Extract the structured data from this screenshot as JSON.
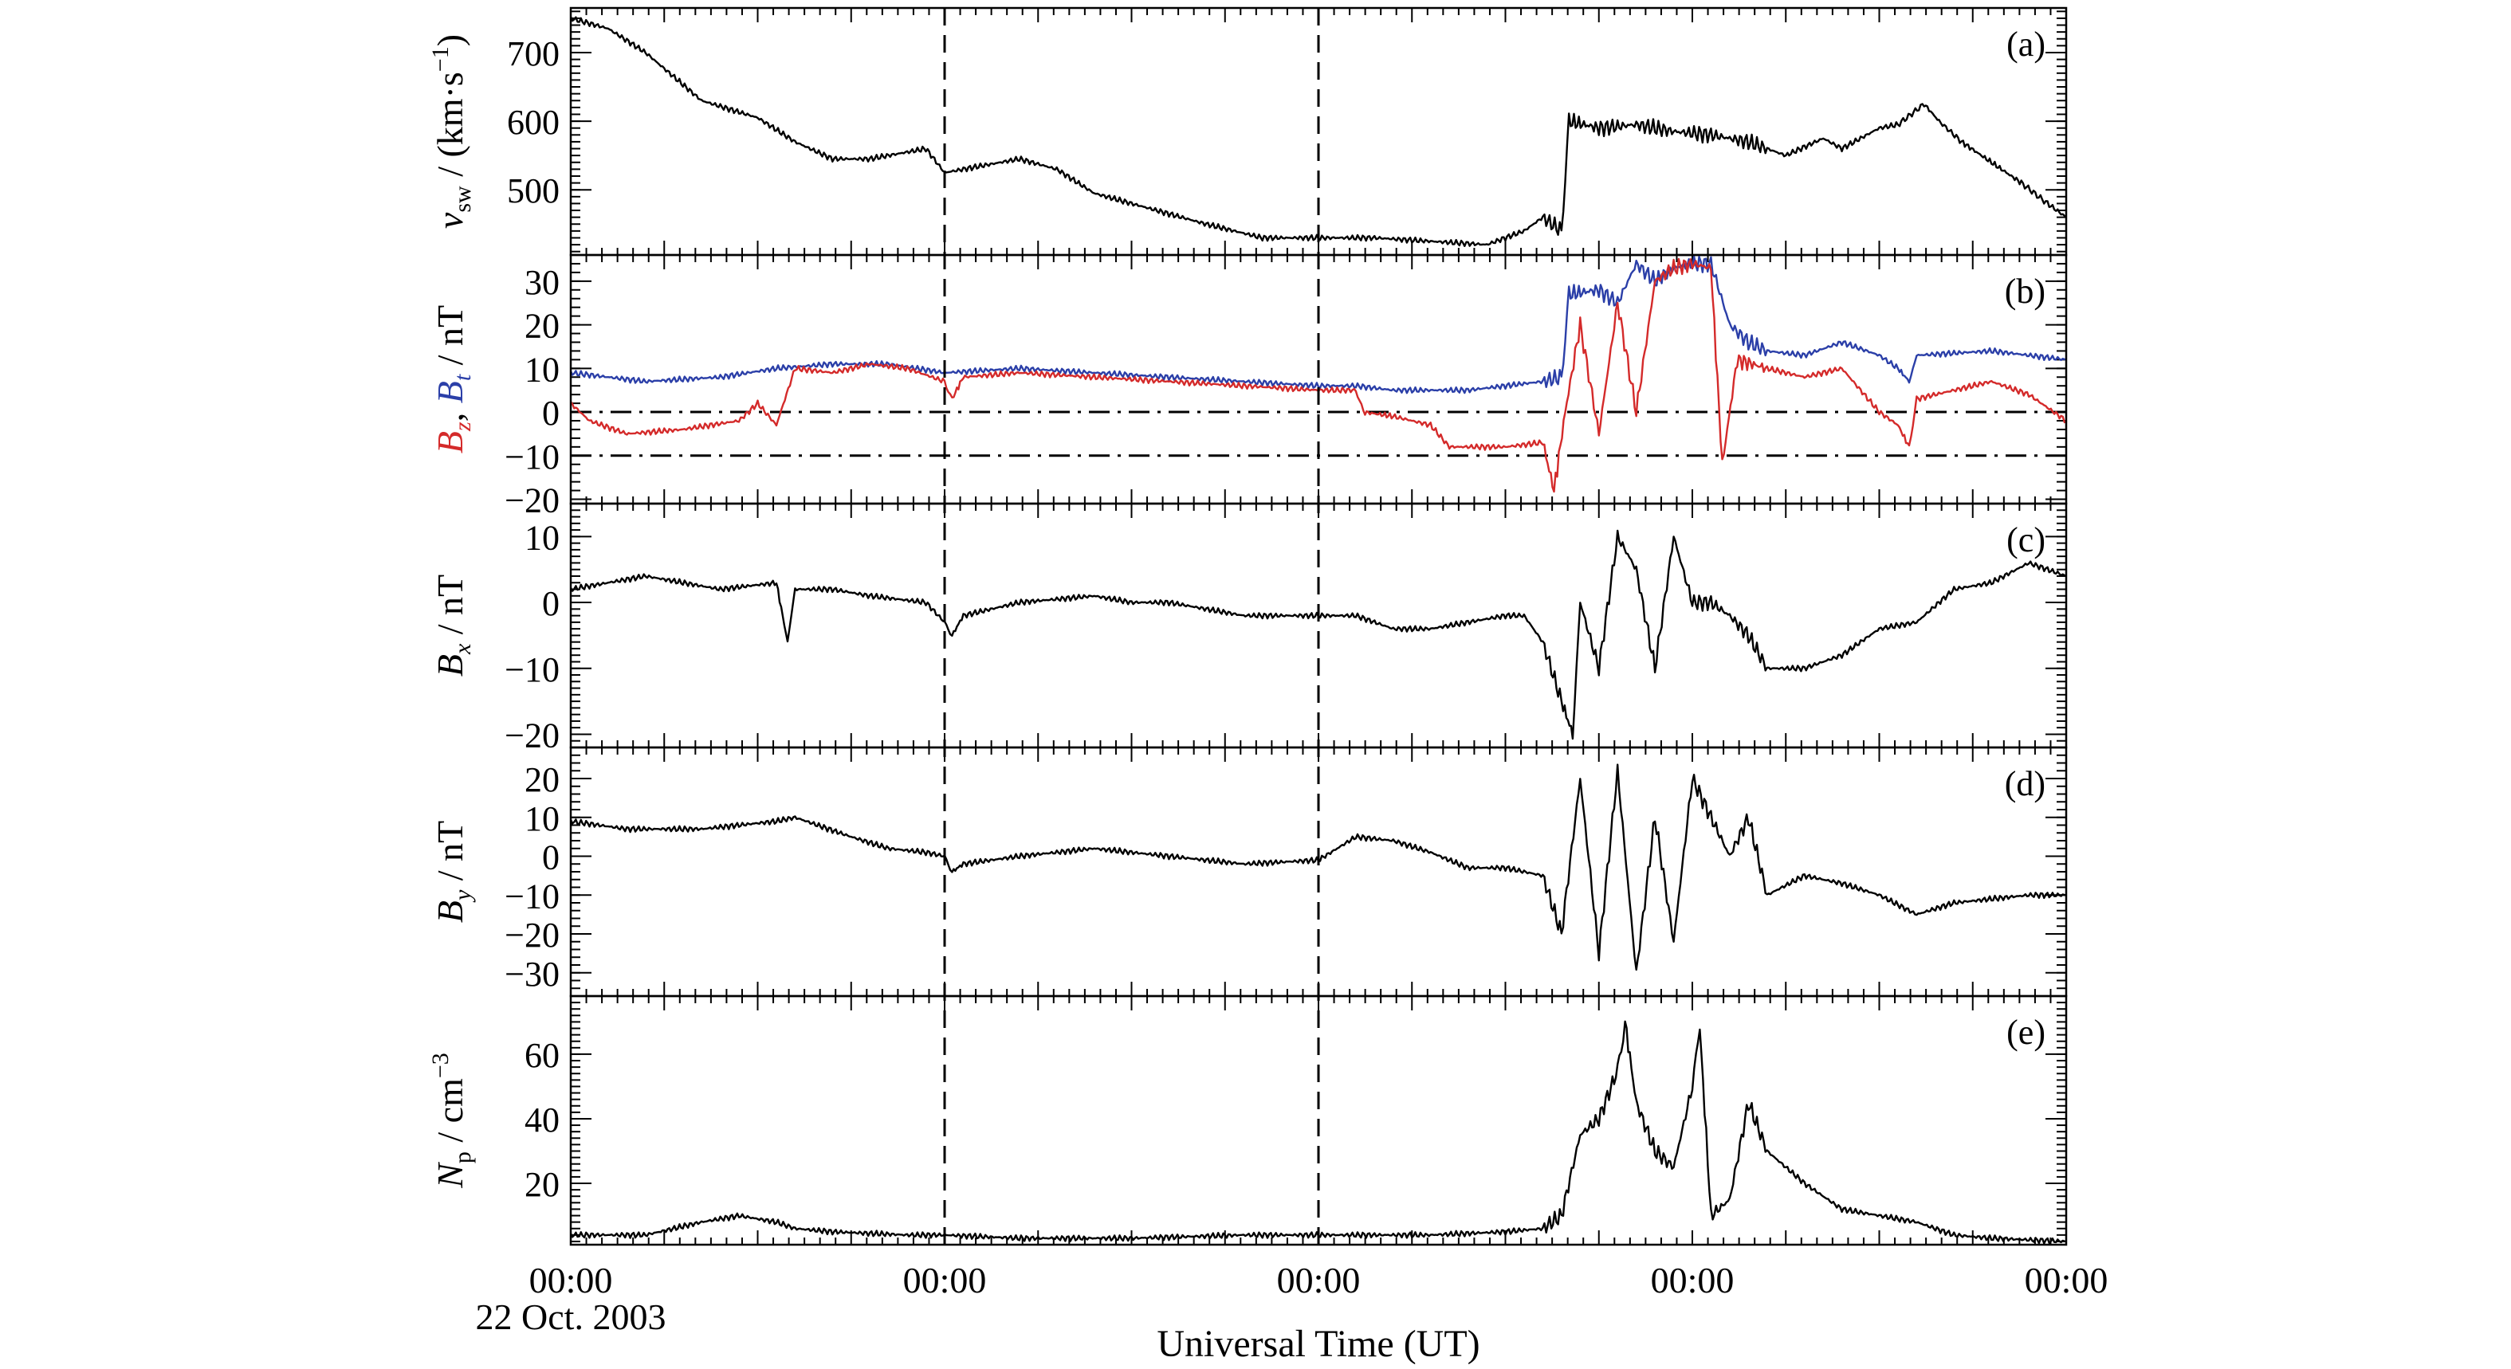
{
  "figure": {
    "x_axis": {
      "tick_labels": [
        "00:00",
        "00:00",
        "00:00",
        "00:00",
        "00:00"
      ],
      "date_label": "22 Oct. 2003",
      "label": "Universal Time (UT)",
      "range_days": [
        0,
        4
      ],
      "tick_positions_days": [
        0,
        1,
        2,
        3,
        4
      ],
      "dashed_vertical_lines_days": [
        1.0,
        2.0
      ]
    }
  },
  "chart_data": [
    {
      "id": "a",
      "type": "line",
      "panel_label": "(a)",
      "ylabel_parts": [
        "v",
        "sw",
        " / (km·s",
        "−1",
        ")"
      ],
      "ylim": [
        405,
        765
      ],
      "yticks": [
        500,
        600,
        700
      ],
      "series": [
        {
          "color": "#000000",
          "points": [
            [
              0,
              750
            ],
            [
              0.1,
              735
            ],
            [
              0.2,
              700
            ],
            [
              0.35,
              630
            ],
            [
              0.5,
              605
            ],
            [
              0.6,
              570
            ],
            [
              0.7,
              545
            ],
            [
              0.8,
              545
            ],
            [
              0.95,
              560
            ],
            [
              1.0,
              525
            ],
            [
              1.1,
              535
            ],
            [
              1.2,
              545
            ],
            [
              1.3,
              530
            ],
            [
              1.4,
              495
            ],
            [
              1.5,
              480
            ],
            [
              1.6,
              465
            ],
            [
              1.7,
              450
            ],
            [
              1.85,
              430
            ],
            [
              2.0,
              430
            ],
            [
              2.15,
              430
            ],
            [
              2.3,
              425
            ],
            [
              2.45,
              420
            ],
            [
              2.55,
              440
            ],
            [
              2.6,
              460
            ],
            [
              2.65,
              440
            ],
            [
              2.67,
              600
            ],
            [
              2.75,
              590
            ],
            [
              2.85,
              595
            ],
            [
              2.95,
              585
            ],
            [
              3.05,
              580
            ],
            [
              3.15,
              570
            ],
            [
              3.25,
              550
            ],
            [
              3.35,
              575
            ],
            [
              3.4,
              560
            ],
            [
              3.45,
              575
            ],
            [
              3.5,
              590
            ],
            [
              3.55,
              595
            ],
            [
              3.62,
              625
            ],
            [
              3.66,
              600
            ],
            [
              3.72,
              570
            ],
            [
              3.8,
              540
            ],
            [
              3.88,
              510
            ],
            [
              3.95,
              480
            ],
            [
              4.0,
              460
            ]
          ]
        }
      ]
    },
    {
      "id": "b",
      "type": "line",
      "panel_label": "(b)",
      "ylabel_parts": [
        "B",
        "z",
        ", ",
        "B",
        "t",
        " / nT"
      ],
      "ylim": [
        -21,
        36
      ],
      "yticks": [
        -20,
        -10,
        0,
        10,
        20,
        30
      ],
      "horizontal_reference_lines": [
        0,
        -10
      ],
      "series": [
        {
          "name": "B_t",
          "color": "#2b3fa8",
          "points": [
            [
              0,
              9
            ],
            [
              0.2,
              7
            ],
            [
              0.4,
              8
            ],
            [
              0.55,
              10
            ],
            [
              0.7,
              11
            ],
            [
              0.85,
              11
            ],
            [
              1.0,
              9
            ],
            [
              1.2,
              10
            ],
            [
              1.4,
              9
            ],
            [
              1.6,
              8
            ],
            [
              1.8,
              7
            ],
            [
              2.0,
              6
            ],
            [
              2.1,
              6
            ],
            [
              2.2,
              5
            ],
            [
              2.4,
              5
            ],
            [
              2.5,
              6
            ],
            [
              2.6,
              7
            ],
            [
              2.65,
              8
            ],
            [
              2.67,
              27
            ],
            [
              2.75,
              28
            ],
            [
              2.8,
              25
            ],
            [
              2.85,
              34
            ],
            [
              2.9,
              30
            ],
            [
              2.95,
              33
            ],
            [
              3.0,
              34
            ],
            [
              3.05,
              34
            ],
            [
              3.1,
              20
            ],
            [
              3.15,
              16
            ],
            [
              3.2,
              14
            ],
            [
              3.3,
              13
            ],
            [
              3.4,
              16
            ],
            [
              3.5,
              13
            ],
            [
              3.55,
              10
            ],
            [
              3.58,
              7
            ],
            [
              3.6,
              13
            ],
            [
              3.8,
              14
            ],
            [
              4.0,
              12
            ]
          ]
        },
        {
          "name": "B_z",
          "color": "#d42a2a",
          "points": [
            [
              0,
              2
            ],
            [
              0.05,
              -2
            ],
            [
              0.15,
              -5
            ],
            [
              0.3,
              -4
            ],
            [
              0.45,
              -2
            ],
            [
              0.5,
              2
            ],
            [
              0.55,
              -3
            ],
            [
              0.6,
              10
            ],
            [
              0.7,
              9
            ],
            [
              0.8,
              11
            ],
            [
              0.9,
              10
            ],
            [
              1.0,
              7
            ],
            [
              1.02,
              3
            ],
            [
              1.05,
              8
            ],
            [
              1.2,
              9
            ],
            [
              1.4,
              8
            ],
            [
              1.6,
              7
            ],
            [
              1.8,
              6
            ],
            [
              2.0,
              5
            ],
            [
              2.1,
              5
            ],
            [
              2.12,
              0
            ],
            [
              2.2,
              -1
            ],
            [
              2.3,
              -3
            ],
            [
              2.35,
              -8
            ],
            [
              2.5,
              -8
            ],
            [
              2.6,
              -7
            ],
            [
              2.63,
              -18
            ],
            [
              2.66,
              0
            ],
            [
              2.7,
              20
            ],
            [
              2.75,
              -5
            ],
            [
              2.8,
              25
            ],
            [
              2.85,
              0
            ],
            [
              2.9,
              30
            ],
            [
              2.95,
              33
            ],
            [
              3.0,
              34
            ],
            [
              3.05,
              33
            ],
            [
              3.08,
              -12
            ],
            [
              3.12,
              12
            ],
            [
              3.2,
              10
            ],
            [
              3.3,
              8
            ],
            [
              3.4,
              10
            ],
            [
              3.45,
              5
            ],
            [
              3.5,
              0
            ],
            [
              3.55,
              -3
            ],
            [
              3.58,
              -8
            ],
            [
              3.6,
              3
            ],
            [
              3.7,
              5
            ],
            [
              3.8,
              7
            ],
            [
              3.9,
              4
            ],
            [
              4.0,
              -2
            ]
          ]
        }
      ]
    },
    {
      "id": "c",
      "type": "line",
      "panel_label": "(c)",
      "ylabel_parts": [
        "B",
        "x",
        " / nT"
      ],
      "ylim": [
        -22,
        15
      ],
      "yticks": [
        -20,
        -10,
        0,
        10
      ],
      "series": [
        {
          "color": "#000000",
          "points": [
            [
              0,
              2
            ],
            [
              0.1,
              3
            ],
            [
              0.2,
              4
            ],
            [
              0.4,
              2
            ],
            [
              0.55,
              3
            ],
            [
              0.58,
              -6
            ],
            [
              0.6,
              2
            ],
            [
              0.7,
              2
            ],
            [
              0.8,
              1
            ],
            [
              0.95,
              0
            ],
            [
              1.0,
              -3
            ],
            [
              1.02,
              -5
            ],
            [
              1.05,
              -2
            ],
            [
              1.2,
              0
            ],
            [
              1.4,
              1
            ],
            [
              1.5,
              0
            ],
            [
              1.6,
              0
            ],
            [
              1.8,
              -2
            ],
            [
              2.0,
              -2
            ],
            [
              2.1,
              -2
            ],
            [
              2.2,
              -4
            ],
            [
              2.3,
              -4
            ],
            [
              2.4,
              -3
            ],
            [
              2.5,
              -2
            ],
            [
              2.55,
              -2
            ],
            [
              2.6,
              -6
            ],
            [
              2.65,
              -15
            ],
            [
              2.68,
              -20
            ],
            [
              2.7,
              0
            ],
            [
              2.75,
              -10
            ],
            [
              2.8,
              10
            ],
            [
              2.85,
              5
            ],
            [
              2.9,
              -10
            ],
            [
              2.95,
              10
            ],
            [
              3.0,
              0
            ],
            [
              3.05,
              0
            ],
            [
              3.1,
              -2
            ],
            [
              3.15,
              -5
            ],
            [
              3.2,
              -10
            ],
            [
              3.3,
              -10
            ],
            [
              3.4,
              -8
            ],
            [
              3.5,
              -4
            ],
            [
              3.6,
              -3
            ],
            [
              3.7,
              2
            ],
            [
              3.8,
              3
            ],
            [
              3.9,
              6
            ],
            [
              4.0,
              4
            ]
          ]
        }
      ]
    },
    {
      "id": "d",
      "type": "line",
      "panel_label": "(d)",
      "ylabel_parts": [
        "B",
        "y",
        " / nT"
      ],
      "ylim": [
        -36,
        28
      ],
      "yticks": [
        -30,
        -20,
        -10,
        0,
        10,
        20
      ],
      "series": [
        {
          "color": "#000000",
          "points": [
            [
              0,
              9
            ],
            [
              0.15,
              7
            ],
            [
              0.35,
              7
            ],
            [
              0.55,
              9
            ],
            [
              0.6,
              10
            ],
            [
              0.75,
              5
            ],
            [
              0.85,
              2
            ],
            [
              0.95,
              1
            ],
            [
              1.0,
              0
            ],
            [
              1.02,
              -4
            ],
            [
              1.05,
              -2
            ],
            [
              1.2,
              0
            ],
            [
              1.4,
              2
            ],
            [
              1.6,
              0
            ],
            [
              1.8,
              -2
            ],
            [
              2.0,
              -1
            ],
            [
              2.1,
              5
            ],
            [
              2.2,
              4
            ],
            [
              2.3,
              1
            ],
            [
              2.4,
              -3
            ],
            [
              2.5,
              -3
            ],
            [
              2.6,
              -5
            ],
            [
              2.65,
              -20
            ],
            [
              2.7,
              20
            ],
            [
              2.75,
              -25
            ],
            [
              2.8,
              22
            ],
            [
              2.85,
              -30
            ],
            [
              2.9,
              10
            ],
            [
              2.95,
              -22
            ],
            [
              3.0,
              20
            ],
            [
              3.05,
              10
            ],
            [
              3.1,
              0
            ],
            [
              3.15,
              10
            ],
            [
              3.2,
              -10
            ],
            [
              3.3,
              -5
            ],
            [
              3.4,
              -7
            ],
            [
              3.5,
              -10
            ],
            [
              3.6,
              -15
            ],
            [
              3.7,
              -12
            ],
            [
              3.8,
              -11
            ],
            [
              3.9,
              -10
            ],
            [
              4.0,
              -10
            ]
          ]
        }
      ]
    },
    {
      "id": "e",
      "type": "line",
      "panel_label": "(e)",
      "ylabel_parts": [
        "N",
        "p",
        " / cm",
        "−3"
      ],
      "ylim": [
        1,
        78
      ],
      "yticks": [
        20,
        40,
        60
      ],
      "series": [
        {
          "color": "#000000",
          "points": [
            [
              0,
              4
            ],
            [
              0.2,
              4
            ],
            [
              0.35,
              8
            ],
            [
              0.45,
              10
            ],
            [
              0.55,
              8
            ],
            [
              0.6,
              6
            ],
            [
              0.7,
              5
            ],
            [
              0.9,
              4
            ],
            [
              1.0,
              4
            ],
            [
              1.2,
              3
            ],
            [
              1.5,
              3
            ],
            [
              1.8,
              4
            ],
            [
              2.0,
              4
            ],
            [
              2.3,
              4
            ],
            [
              2.5,
              5
            ],
            [
              2.6,
              6
            ],
            [
              2.65,
              10
            ],
            [
              2.7,
              35
            ],
            [
              2.75,
              40
            ],
            [
              2.8,
              55
            ],
            [
              2.82,
              70
            ],
            [
              2.85,
              45
            ],
            [
              2.9,
              30
            ],
            [
              2.95,
              25
            ],
            [
              3.0,
              50
            ],
            [
              3.02,
              68
            ],
            [
              3.05,
              10
            ],
            [
              3.1,
              15
            ],
            [
              3.15,
              45
            ],
            [
              3.2,
              30
            ],
            [
              3.3,
              20
            ],
            [
              3.4,
              12
            ],
            [
              3.5,
              10
            ],
            [
              3.6,
              8
            ],
            [
              3.7,
              4
            ],
            [
              3.8,
              3
            ],
            [
              4.0,
              2
            ]
          ]
        }
      ]
    }
  ]
}
